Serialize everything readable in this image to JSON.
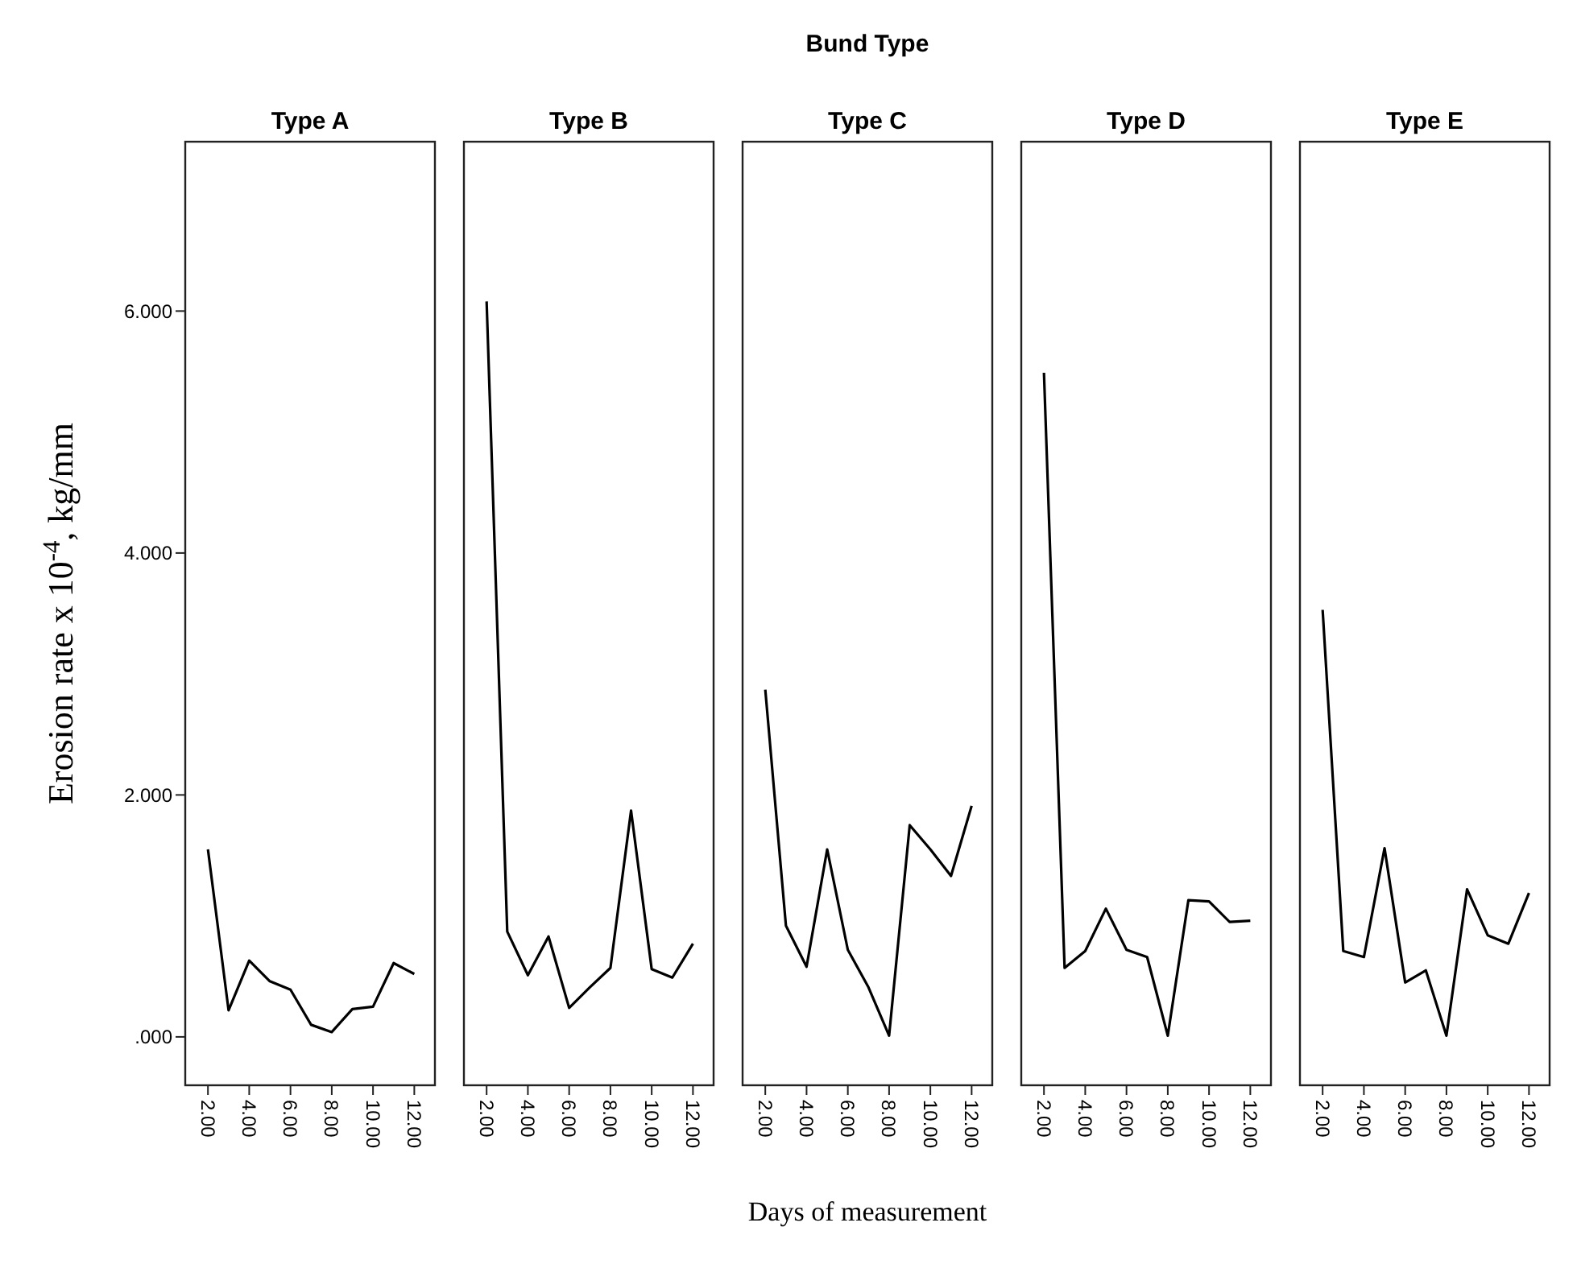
{
  "chart_data": [
    {
      "type": "line",
      "title": "Type A",
      "ylabel": "Erosion rate x 10$^{-4}$, kg/mm",
      "x": [
        2,
        3,
        4,
        5,
        6,
        7,
        8,
        9,
        10,
        11,
        12
      ],
      "series": [
        {
          "color": "#000000",
          "values": [
            1.55,
            0.22,
            0.63,
            0.46,
            0.39,
            0.1,
            0.04,
            0.23,
            0.25,
            0.61,
            0.52
          ]
        }
      ],
      "xlim": [
        0.9,
        13
      ],
      "ylim": [
        -0.4,
        7.4
      ],
      "xticks": [
        {
          "value": 2,
          "label": "2.00"
        },
        {
          "value": 4,
          "label": "4.00"
        },
        {
          "value": 6,
          "label": "6.00"
        },
        {
          "value": 8,
          "label": "8.00"
        },
        {
          "value": 10,
          "label": "10.00"
        },
        {
          "value": 12,
          "label": "12.00"
        }
      ],
      "yticks": [
        {
          "value": 0,
          "label": ".000"
        },
        {
          "value": 2,
          "label": "2.000"
        },
        {
          "value": 4,
          "label": "4.000"
        },
        {
          "value": 6,
          "label": "6.000"
        }
      ],
      "grid": false
    },
    {
      "type": "line",
      "title": "Type B",
      "x": [
        2,
        3,
        4,
        5,
        6,
        7,
        8,
        9,
        10,
        11,
        12
      ],
      "series": [
        {
          "color": "#000000",
          "values": [
            6.08,
            0.87,
            0.51,
            0.83,
            0.24,
            0.41,
            0.57,
            1.87,
            0.56,
            0.49,
            0.77
          ]
        }
      ],
      "xlim": [
        0.9,
        13
      ],
      "ylim": [
        -0.4,
        7.4
      ],
      "xticks": [
        {
          "value": 2,
          "label": "2.00"
        },
        {
          "value": 4,
          "label": "4.00"
        },
        {
          "value": 6,
          "label": "6.00"
        },
        {
          "value": 8,
          "label": "8.00"
        },
        {
          "value": 10,
          "label": "10.00"
        },
        {
          "value": 12,
          "label": "12.00"
        }
      ],
      "tick_labels": "x",
      "grid": false
    },
    {
      "type": "line",
      "title": "Type C",
      "xlabel": "Days of measurement",
      "annotations": [
        "Bund Type"
      ],
      "x": [
        2,
        3,
        4,
        5,
        6,
        7,
        8,
        9,
        10,
        11,
        12
      ],
      "series": [
        {
          "color": "#000000",
          "values": [
            2.87,
            0.92,
            0.58,
            1.55,
            0.72,
            0.41,
            0.01,
            1.75,
            1.55,
            1.33,
            1.91
          ]
        }
      ],
      "xlim": [
        0.9,
        13
      ],
      "ylim": [
        -0.4,
        7.4
      ],
      "xticks": [
        {
          "value": 2,
          "label": "2.00"
        },
        {
          "value": 4,
          "label": "4.00"
        },
        {
          "value": 6,
          "label": "6.00"
        },
        {
          "value": 8,
          "label": "8.00"
        },
        {
          "value": 10,
          "label": "10.00"
        },
        {
          "value": 12,
          "label": "12.00"
        }
      ],
      "tick_labels": "x",
      "grid": false
    },
    {
      "type": "line",
      "title": "Type D",
      "x": [
        2,
        3,
        4,
        5,
        6,
        7,
        8,
        9,
        10,
        11,
        12
      ],
      "series": [
        {
          "color": "#000000",
          "values": [
            5.49,
            0.57,
            0.71,
            1.06,
            0.72,
            0.66,
            0.01,
            1.13,
            1.12,
            0.95,
            0.96
          ]
        }
      ],
      "xlim": [
        0.9,
        13
      ],
      "ylim": [
        -0.4,
        7.4
      ],
      "xticks": [
        {
          "value": 2,
          "label": "2.00"
        },
        {
          "value": 4,
          "label": "4.00"
        },
        {
          "value": 6,
          "label": "6.00"
        },
        {
          "value": 8,
          "label": "8.00"
        },
        {
          "value": 10,
          "label": "10.00"
        },
        {
          "value": 12,
          "label": "12.00"
        }
      ],
      "tick_labels": "x",
      "grid": false
    },
    {
      "type": "line",
      "title": "Type E",
      "x": [
        2,
        3,
        4,
        5,
        6,
        7,
        8,
        9,
        10,
        11,
        12
      ],
      "series": [
        {
          "color": "#000000",
          "values": [
            3.53,
            0.71,
            0.66,
            1.56,
            0.45,
            0.55,
            0.01,
            1.22,
            0.84,
            0.77,
            1.19
          ]
        }
      ],
      "xlim": [
        0.9,
        13
      ],
      "ylim": [
        -0.4,
        7.4
      ],
      "xticks": [
        {
          "value": 2,
          "label": "2.00"
        },
        {
          "value": 4,
          "label": "4.00"
        },
        {
          "value": 6,
          "label": "6.00"
        },
        {
          "value": 8,
          "label": "8.00"
        },
        {
          "value": 10,
          "label": "10.00"
        },
        {
          "value": 12,
          "label": "12.00"
        }
      ],
      "tick_labels": "x",
      "grid": false
    }
  ]
}
